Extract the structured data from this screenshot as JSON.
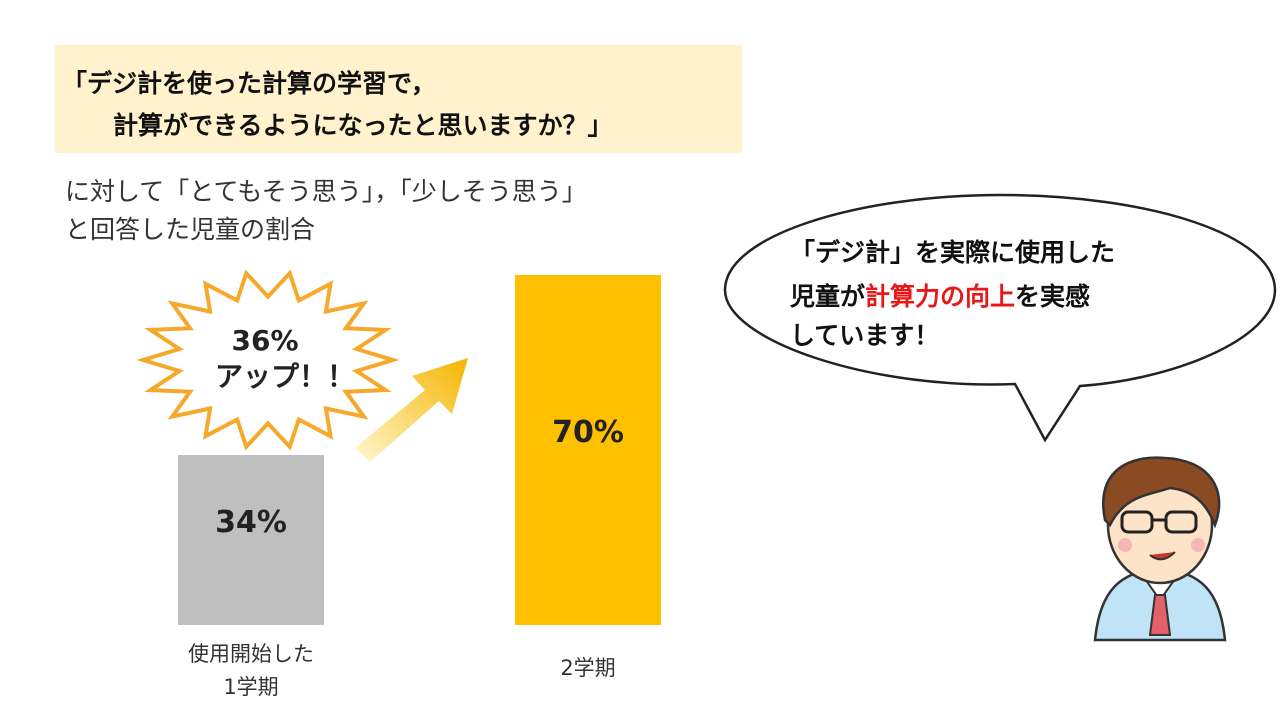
{
  "question": [
    "「デジ計を使った計算の学習で，",
    "計算ができるようになったと思いますか？」"
  ],
  "subtitle": [
    "に対して「とてもそう思う」，「少しそう思う」",
    "と回答した児童の割合"
  ],
  "chart_data": {
    "type": "bar",
    "categories": [
      "使用開始した\n1学期",
      "2学期"
    ],
    "values": [
      34,
      70
    ],
    "value_labels": [
      "34%",
      "70%"
    ],
    "colors": [
      "#bfbfbf",
      "#ffc000"
    ],
    "annotation": [
      "36%",
      "アップ！！"
    ]
  },
  "speech": {
    "line1": "「デジ計」を実際に使用した",
    "line2": [
      "児童が",
      "計算力の向上",
      "を実感"
    ],
    "line3": "しています！"
  }
}
